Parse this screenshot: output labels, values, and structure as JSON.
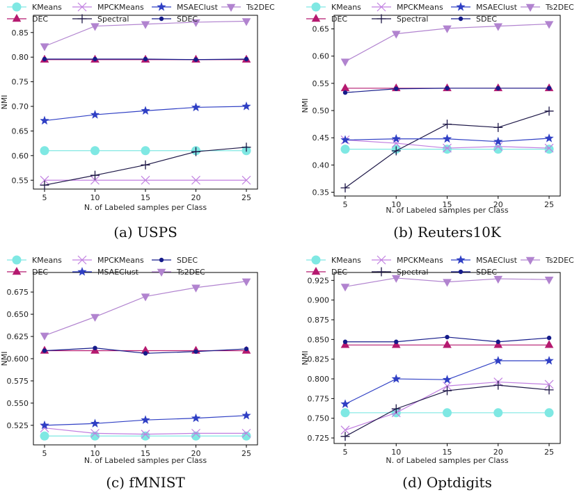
{
  "styles": {
    "KMeans": {
      "color": "#7fe8e3",
      "marker": "circle"
    },
    "DEC": {
      "color": "#b5196f",
      "marker": "triangle-up"
    },
    "MPCKMeans": {
      "color": "#c07ee0",
      "marker": "x"
    },
    "Spectral": {
      "color": "#1c1646",
      "marker": "plus"
    },
    "MSAEClust": {
      "color": "#2f3fc4",
      "marker": "star"
    },
    "SDEC": {
      "color": "#151b8a",
      "marker": "dot"
    },
    "Ts2DEC": {
      "color": "#b183cf",
      "marker": "triangle-down"
    }
  },
  "chart_data": [
    {
      "type": "line",
      "caption": "(a) USPS",
      "xlabel": "N. of Labeled samples per Class",
      "ylabel": "NMI",
      "x": [
        5,
        10,
        15,
        20,
        25
      ],
      "xticks": [
        "5",
        "10",
        "15",
        "20",
        "25"
      ],
      "yticks": [
        "0.55",
        "0.60",
        "0.65",
        "0.70",
        "0.75",
        "0.80",
        "0.85"
      ],
      "ylim": [
        0.532,
        0.885
      ],
      "legend": [
        "KMeans",
        "DEC",
        "MPCKMeans",
        "Spectral",
        "MSAEClust",
        "SDEC",
        "Ts2DEC"
      ],
      "series": [
        {
          "name": "KMeans",
          "values": [
            0.61,
            0.61,
            0.61,
            0.61,
            0.61
          ]
        },
        {
          "name": "DEC",
          "values": [
            0.795,
            0.795,
            0.795,
            0.795,
            0.795
          ]
        },
        {
          "name": "MPCKMeans",
          "values": [
            0.55,
            0.55,
            0.55,
            0.55,
            0.55
          ]
        },
        {
          "name": "Spectral",
          "values": [
            0.54,
            0.56,
            0.581,
            0.608,
            0.617
          ]
        },
        {
          "name": "MSAEClust",
          "values": [
            0.671,
            0.683,
            0.691,
            0.698,
            0.7
          ]
        },
        {
          "name": "SDEC",
          "values": [
            0.796,
            0.796,
            0.796,
            0.795,
            0.796
          ]
        },
        {
          "name": "Ts2DEC",
          "values": [
            0.822,
            0.863,
            0.867,
            0.871,
            0.873
          ]
        }
      ]
    },
    {
      "type": "line",
      "caption": "(b) Reuters10K",
      "xlabel": "N. of Labeled samples per Class",
      "ylabel": "NMI",
      "x": [
        5,
        10,
        15,
        20,
        25
      ],
      "xticks": [
        "5",
        "10",
        "15",
        "20",
        "25"
      ],
      "yticks": [
        "0.35",
        "0.40",
        "0.45",
        "0.50",
        "0.55",
        "0.60",
        "0.65"
      ],
      "ylim": [
        0.343,
        0.675
      ],
      "legend": [
        "KMeans",
        "DEC",
        "MPCKMeans",
        "Spectral",
        "MSAEClust",
        "SDEC",
        "Ts2DEC"
      ],
      "series": [
        {
          "name": "KMeans",
          "values": [
            0.429,
            0.429,
            0.429,
            0.429,
            0.429
          ]
        },
        {
          "name": "DEC",
          "values": [
            0.541,
            0.541,
            0.541,
            0.541,
            0.541
          ]
        },
        {
          "name": "MPCKMeans",
          "values": [
            0.446,
            0.44,
            0.431,
            0.434,
            0.431
          ]
        },
        {
          "name": "Spectral",
          "values": [
            0.358,
            0.426,
            0.475,
            0.469,
            0.499
          ]
        },
        {
          "name": "MSAEClust",
          "values": [
            0.446,
            0.448,
            0.448,
            0.443,
            0.449
          ]
        },
        {
          "name": "SDEC",
          "values": [
            0.533,
            0.54,
            0.541,
            0.541,
            0.541
          ]
        },
        {
          "name": "Ts2DEC",
          "values": [
            0.59,
            0.641,
            0.651,
            0.655,
            0.659
          ]
        }
      ]
    },
    {
      "type": "line",
      "caption": "(c) fMNIST",
      "xlabel": "N. of Labeled samples per Class",
      "ylabel": "NMI",
      "x": [
        5,
        10,
        15,
        20,
        25
      ],
      "xticks": [
        "5",
        "10",
        "15",
        "20",
        "25"
      ],
      "yticks": [
        "0.525",
        "0.550",
        "0.575",
        "0.600",
        "0.625",
        "0.650",
        "0.675"
      ],
      "ylim": [
        0.503,
        0.697
      ],
      "legend": [
        "KMeans",
        "DEC",
        "MPCKMeans",
        "MSAEClust",
        "SDEC",
        "Ts2DEC"
      ],
      "series": [
        {
          "name": "KMeans",
          "values": [
            0.513,
            0.513,
            0.513,
            0.513,
            0.513
          ]
        },
        {
          "name": "DEC",
          "values": [
            0.609,
            0.609,
            0.609,
            0.609,
            0.609
          ]
        },
        {
          "name": "MPCKMeans",
          "values": [
            0.522,
            0.516,
            0.515,
            0.516,
            0.516
          ]
        },
        {
          "name": "MSAEClust",
          "values": [
            0.525,
            0.527,
            0.531,
            0.533,
            0.536
          ]
        },
        {
          "name": "SDEC",
          "values": [
            0.609,
            0.612,
            0.606,
            0.608,
            0.611
          ]
        },
        {
          "name": "Ts2DEC",
          "values": [
            0.626,
            0.647,
            0.67,
            0.68,
            0.687
          ]
        }
      ]
    },
    {
      "type": "line",
      "caption": "(d) Optdigits",
      "xlabel": "N. of Labeled samples per Class",
      "ylabel": "NMI",
      "x": [
        5,
        10,
        15,
        20,
        25
      ],
      "xticks": [
        "5",
        "10",
        "15",
        "20",
        "25"
      ],
      "yticks": [
        "0.725",
        "0.750",
        "0.775",
        "0.800",
        "0.825",
        "0.850",
        "0.875",
        "0.900",
        "0.925"
      ],
      "ylim": [
        0.718,
        0.935
      ],
      "legend": [
        "KMeans",
        "DEC",
        "MPCKMeans",
        "Spectral",
        "MSAEClust",
        "SDEC",
        "Ts2DEC"
      ],
      "series": [
        {
          "name": "KMeans",
          "values": [
            0.757,
            0.757,
            0.757,
            0.757,
            0.757
          ]
        },
        {
          "name": "DEC",
          "values": [
            0.843,
            0.843,
            0.843,
            0.843,
            0.843
          ]
        },
        {
          "name": "MPCKMeans",
          "values": [
            0.735,
            0.757,
            0.791,
            0.796,
            0.793
          ]
        },
        {
          "name": "Spectral",
          "values": [
            0.727,
            0.762,
            0.785,
            0.792,
            0.786
          ]
        },
        {
          "name": "MSAEClust",
          "values": [
            0.768,
            0.8,
            0.799,
            0.823,
            0.823
          ]
        },
        {
          "name": "SDEC",
          "values": [
            0.847,
            0.847,
            0.853,
            0.847,
            0.852
          ]
        },
        {
          "name": "Ts2DEC",
          "values": [
            0.917,
            0.928,
            0.923,
            0.927,
            0.926
          ]
        }
      ]
    }
  ]
}
